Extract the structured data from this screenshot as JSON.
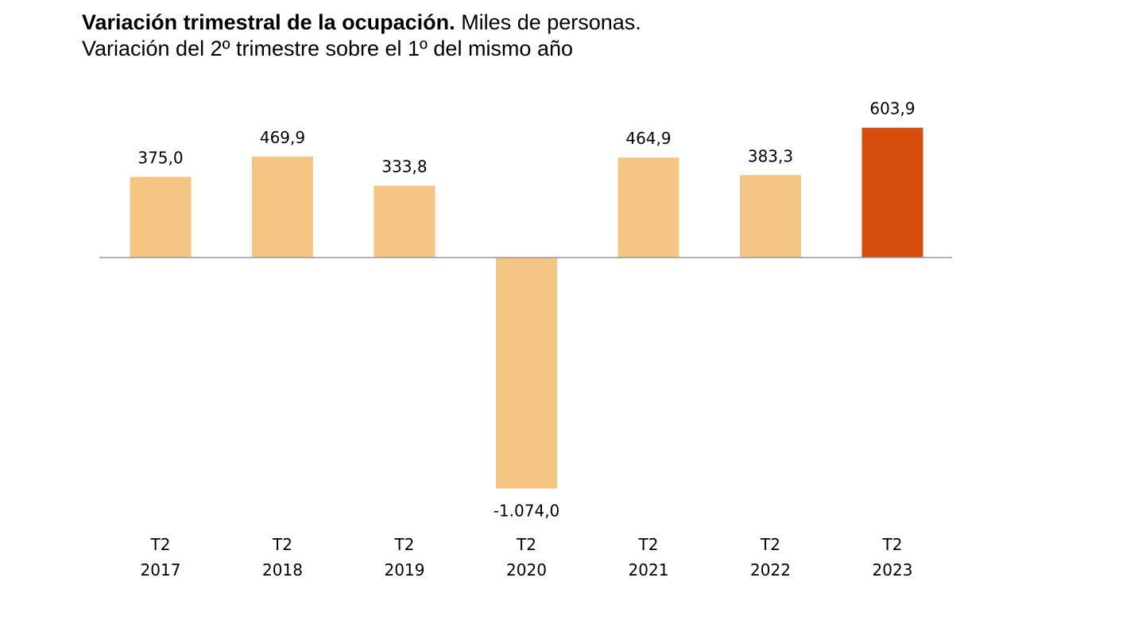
{
  "chart_data": {
    "type": "bar",
    "title": "Variación trimestral de la ocupación.",
    "title_unit": "Miles de personas.",
    "subtitle": "Variación del 2º trimestre sobre el 1º del mismo año",
    "categories": [
      {
        "quarter": "T2",
        "year": "2017"
      },
      {
        "quarter": "T2",
        "year": "2018"
      },
      {
        "quarter": "T2",
        "year": "2019"
      },
      {
        "quarter": "T2",
        "year": "2020"
      },
      {
        "quarter": "T2",
        "year": "2021"
      },
      {
        "quarter": "T2",
        "year": "2022"
      },
      {
        "quarter": "T2",
        "year": "2023"
      }
    ],
    "values": [
      375.0,
      469.9,
      333.8,
      -1074.0,
      464.9,
      383.3,
      603.9
    ],
    "value_labels": [
      "375,0",
      "469,9",
      "333,8",
      "-1.074,0",
      "464,9",
      "383,3",
      "603,9"
    ],
    "highlight_index": 6,
    "colors": {
      "bar": "#F5C583",
      "highlight": "#D64E0E",
      "axis": "#999999"
    },
    "xlabel": "",
    "ylabel": "",
    "grid": false
  }
}
